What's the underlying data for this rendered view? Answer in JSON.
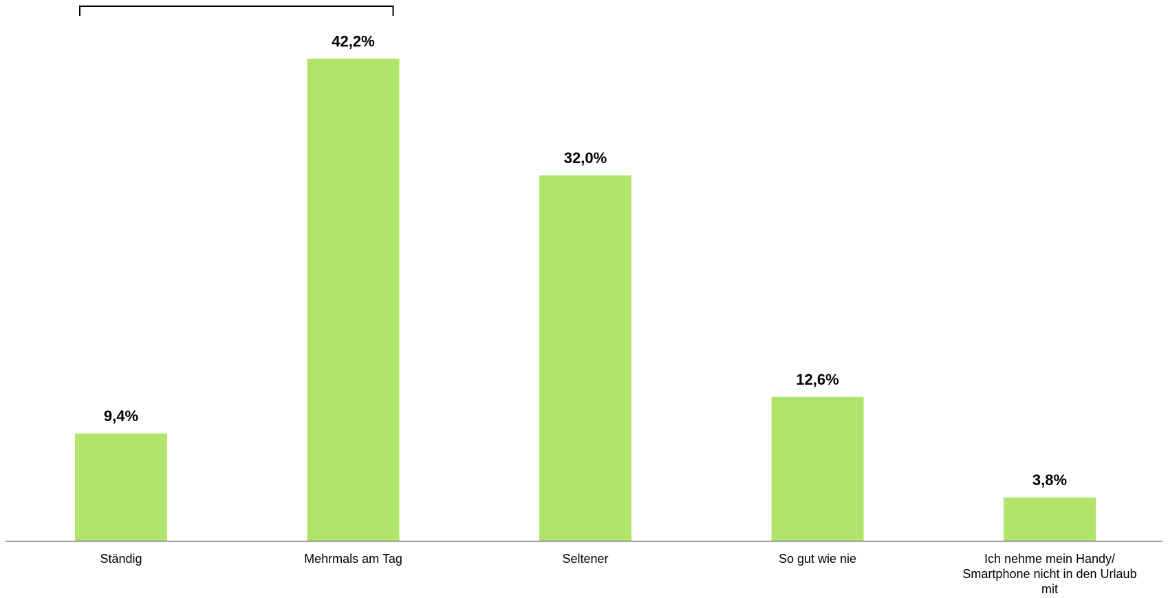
{
  "chart_data": {
    "type": "bar",
    "categories": [
      [
        "Ständig"
      ],
      [
        "Mehrmals am Tag"
      ],
      [
        "Seltener"
      ],
      [
        "So gut wie nie"
      ],
      [
        "Ich nehme mein Handy/",
        "Smartphone nicht in den Urlaub",
        "mit"
      ]
    ],
    "values": [
      9.4,
      42.2,
      32.0,
      12.6,
      3.8
    ],
    "value_labels": [
      "9,4%",
      "42,2%",
      "32,0%",
      "12,6%",
      "3,8%"
    ],
    "bar_color": "#b0e46a",
    "axis_color": "#7f7f7f",
    "bracket": {
      "from_category": 0,
      "to_category": 1
    },
    "title": "",
    "xlabel": "",
    "ylabel": "",
    "grid": false,
    "legend": "none"
  }
}
